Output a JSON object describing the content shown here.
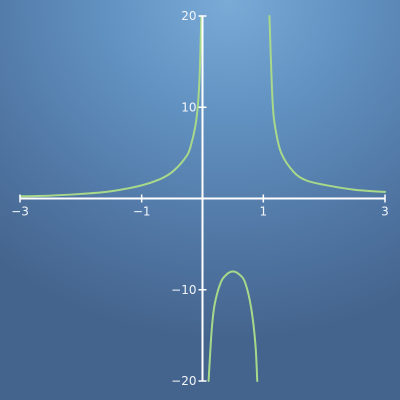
{
  "chart_data": {
    "type": "line",
    "title": "",
    "xlabel": "",
    "ylabel": "",
    "xlim": [
      -3,
      3
    ],
    "ylim": [
      -20,
      20
    ],
    "grid": false,
    "line_color": "#a8d98a",
    "axis_color": "#ffffff",
    "x_ticks": [
      {
        "value": -3,
        "label": "−3"
      },
      {
        "value": -1,
        "label": "−1"
      },
      {
        "value": 1,
        "label": "1"
      },
      {
        "value": 3,
        "label": "3"
      }
    ],
    "y_ticks": [
      {
        "value": 20,
        "label": "20"
      },
      {
        "value": 10,
        "label": "10"
      },
      {
        "value": -10,
        "label": "−10"
      },
      {
        "value": -20,
        "label": "−20"
      }
    ],
    "series": [
      {
        "name": "",
        "x": [
          -3.0,
          -2.5,
          -2.0,
          -1.5,
          -1.0,
          -0.7,
          -0.5,
          -0.3,
          -0.2,
          -0.1,
          -0.05,
          -0.02
        ],
        "y": [
          0.24,
          0.32,
          0.5,
          0.8,
          1.44,
          2.12,
          2.9,
          4.3,
          5.6,
          8.7,
          13.0,
          20.0
        ]
      },
      {
        "name": "",
        "x": [
          0.1,
          0.15,
          0.2,
          0.3,
          0.4,
          0.5,
          0.6,
          0.7,
          0.8,
          0.87,
          0.9
        ],
        "y": [
          -20.0,
          -14.5,
          -11.6,
          -9.2,
          -8.3,
          -8.0,
          -8.3,
          -9.2,
          -12.0,
          -16.0,
          -20.0
        ]
      },
      {
        "name": "",
        "x": [
          1.1,
          1.15,
          1.2,
          1.3,
          1.5,
          1.7,
          2.0,
          2.5,
          3.0
        ],
        "y": [
          20.0,
          10.9,
          7.6,
          4.9,
          2.9,
          2.0,
          1.5,
          0.96,
          0.72
        ]
      }
    ]
  }
}
